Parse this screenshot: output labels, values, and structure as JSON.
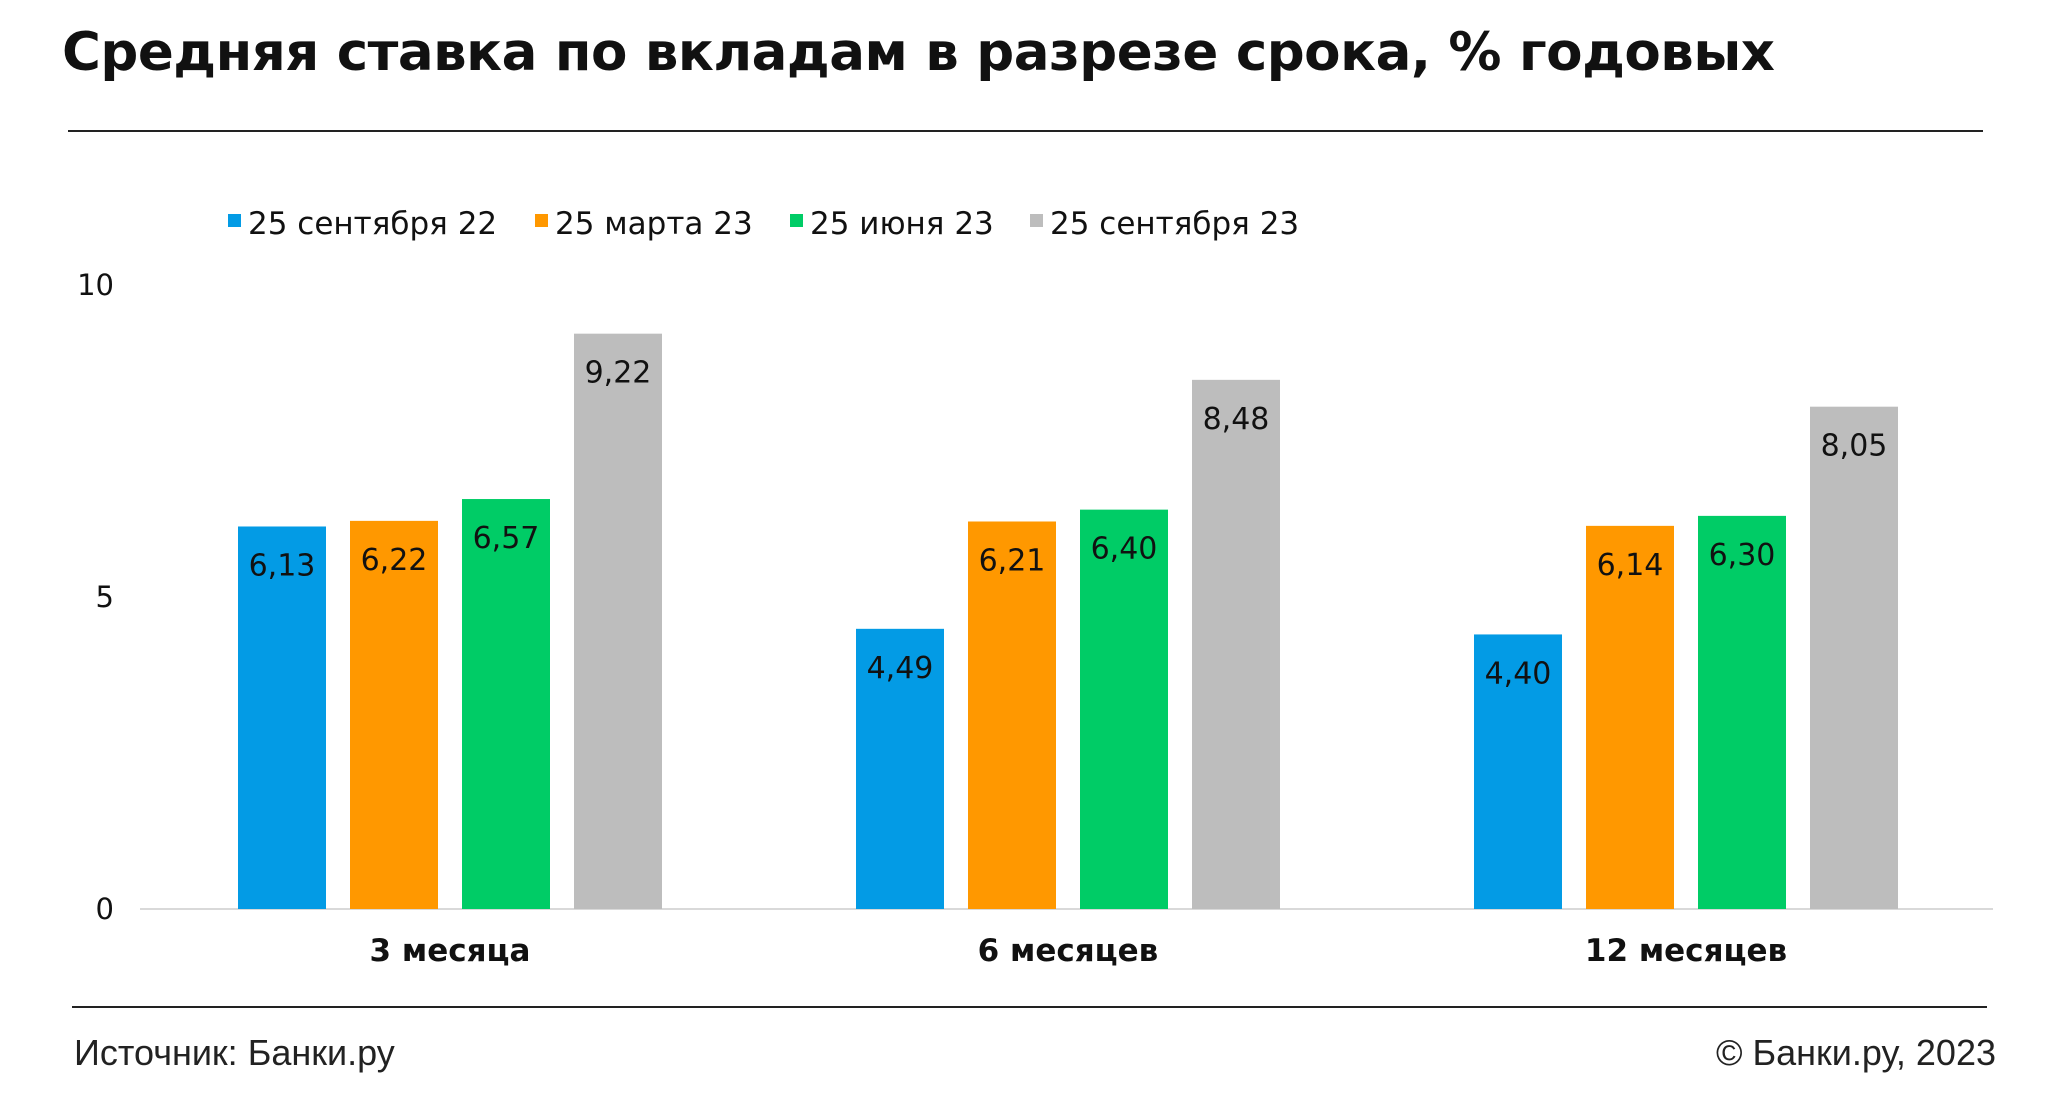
{
  "title": "Средняя ставка по вкладам в разрезе срока, % годовых",
  "footer": {
    "source": "Источник: Банки.ру",
    "copyright": "© Банки.ру, 2023"
  },
  "chart_data": {
    "type": "bar",
    "categories": [
      "3 месяца",
      "6 месяцев",
      "12 месяцев"
    ],
    "series": [
      {
        "name": "25 сентября 22",
        "color": "#039be5",
        "values": [
          6.13,
          4.49,
          4.4
        ],
        "labels": [
          "6,13",
          "4,49",
          "4,40"
        ]
      },
      {
        "name": "25 марта 23",
        "color": "#ff9800",
        "values": [
          6.22,
          6.21,
          6.14
        ],
        "labels": [
          "6,22",
          "6,21",
          "6,14"
        ]
      },
      {
        "name": "25 июня 23",
        "color": "#00cc66",
        "values": [
          6.57,
          6.4,
          6.3
        ],
        "labels": [
          "6,57",
          "6,40",
          "6,30"
        ]
      },
      {
        "name": "25 сентября 23",
        "color": "#bdbdbd",
        "values": [
          9.22,
          8.48,
          8.05
        ],
        "labels": [
          "9,22",
          "8,48",
          "8,05"
        ]
      }
    ],
    "ylim": [
      0,
      10
    ],
    "yticks": [
      "0",
      "5",
      "10"
    ],
    "grid": false,
    "legend": "top-left"
  }
}
